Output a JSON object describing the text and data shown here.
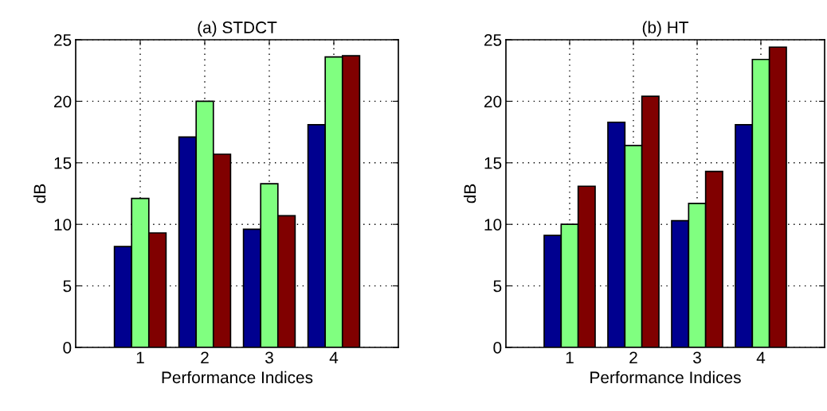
{
  "chart_data": [
    {
      "type": "bar",
      "title": "(a) STDCT",
      "xlabel": "Performance Indices",
      "ylabel": "dB",
      "x": [
        1,
        2,
        3,
        4
      ],
      "xlim": [
        0,
        5
      ],
      "xticks": [
        1,
        2,
        3,
        4
      ],
      "ylim": [
        0,
        25
      ],
      "yticks": [
        0,
        5,
        10,
        15,
        20,
        25
      ],
      "grid": true,
      "series": [
        {
          "color": "#00008f",
          "values": [
            8.2,
            17.1,
            9.6,
            18.1
          ]
        },
        {
          "color": "#80ff80",
          "values": [
            12.1,
            20.0,
            13.3,
            23.6
          ]
        },
        {
          "color": "#800000",
          "values": [
            9.3,
            15.7,
            10.7,
            23.7
          ]
        }
      ]
    },
    {
      "type": "bar",
      "title": "(b) HT",
      "xlabel": "Performance Indices",
      "ylabel": "dB",
      "x": [
        1,
        2,
        3,
        4
      ],
      "xlim": [
        0,
        5
      ],
      "xticks": [
        1,
        2,
        3,
        4
      ],
      "ylim": [
        0,
        25
      ],
      "yticks": [
        0,
        5,
        10,
        15,
        20,
        25
      ],
      "grid": true,
      "series": [
        {
          "color": "#00008f",
          "values": [
            9.1,
            18.3,
            10.3,
            18.1
          ]
        },
        {
          "color": "#80ff80",
          "values": [
            10.0,
            16.4,
            11.7,
            23.4
          ]
        },
        {
          "color": "#800000",
          "values": [
            13.1,
            20.4,
            14.3,
            24.4
          ]
        }
      ]
    }
  ]
}
